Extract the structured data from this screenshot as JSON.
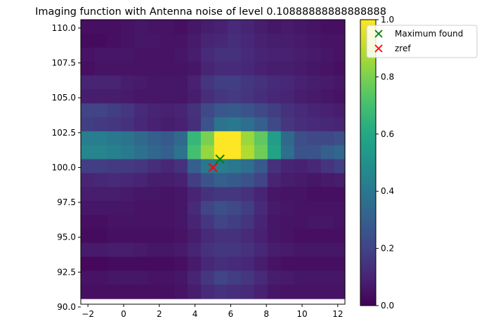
{
  "chart_data": {
    "type": "heatmap",
    "title": "Imaging function with  Antenna noise of level 0.10888888888888888",
    "xlabel": "",
    "ylabel": "",
    "xlim": [
      -2.4,
      12.4
    ],
    "ylim": [
      90.2,
      110.6
    ],
    "x_ticks": [
      -2,
      0,
      2,
      4,
      6,
      8,
      10,
      12
    ],
    "x_tick_labels": [
      "−2",
      "0",
      "2",
      "4",
      "6",
      "8",
      "10",
      "12"
    ],
    "y_ticks": [
      90.0,
      92.5,
      95.0,
      97.5,
      100.0,
      102.5,
      105.0,
      107.5,
      110.0
    ],
    "y_tick_labels": [
      "90.0",
      "92.5",
      "95.0",
      "97.5",
      "100.0",
      "102.5",
      "105.0",
      "107.5",
      "110.0"
    ],
    "grid": false,
    "colormap": "viridis",
    "colorbar": {
      "range": [
        0.0,
        1.0
      ],
      "ticks": [
        0.0,
        0.2,
        0.4,
        0.6,
        0.8,
        1.0
      ],
      "tick_labels": [
        "0.0",
        "0.2",
        "0.4",
        "0.6",
        "0.8",
        "1.0"
      ]
    },
    "cells": {
      "x_edges_start": -2.4,
      "x_step": 0.7474,
      "y_edges_start": 110.6,
      "y_step": -1.0,
      "values": [
        [
          0.04,
          0.04,
          0.04,
          0.05,
          0.06,
          0.05,
          0.05,
          0.04,
          0.06,
          0.08,
          0.09,
          0.12,
          0.1,
          0.08,
          0.06,
          0.07,
          0.06,
          0.05,
          0.04,
          0.04
        ],
        [
          0.03,
          0.03,
          0.04,
          0.05,
          0.06,
          0.06,
          0.05,
          0.05,
          0.07,
          0.1,
          0.11,
          0.13,
          0.11,
          0.09,
          0.08,
          0.08,
          0.07,
          0.06,
          0.05,
          0.05
        ],
        [
          0.05,
          0.06,
          0.06,
          0.06,
          0.05,
          0.05,
          0.05,
          0.06,
          0.08,
          0.12,
          0.14,
          0.14,
          0.12,
          0.1,
          0.09,
          0.09,
          0.08,
          0.07,
          0.06,
          0.05
        ],
        [
          0.04,
          0.05,
          0.05,
          0.05,
          0.05,
          0.05,
          0.05,
          0.05,
          0.06,
          0.1,
          0.12,
          0.12,
          0.11,
          0.09,
          0.08,
          0.08,
          0.07,
          0.06,
          0.05,
          0.04
        ],
        [
          0.1,
          0.1,
          0.1,
          0.08,
          0.07,
          0.06,
          0.06,
          0.06,
          0.09,
          0.15,
          0.18,
          0.18,
          0.16,
          0.14,
          0.12,
          0.11,
          0.09,
          0.08,
          0.07,
          0.06
        ],
        [
          0.08,
          0.08,
          0.08,
          0.07,
          0.06,
          0.06,
          0.06,
          0.06,
          0.08,
          0.13,
          0.16,
          0.17,
          0.15,
          0.13,
          0.11,
          0.1,
          0.08,
          0.07,
          0.06,
          0.05
        ],
        [
          0.2,
          0.2,
          0.18,
          0.16,
          0.12,
          0.1,
          0.09,
          0.1,
          0.14,
          0.22,
          0.27,
          0.28,
          0.26,
          0.22,
          0.18,
          0.14,
          0.12,
          0.1,
          0.09,
          0.08
        ],
        [
          0.18,
          0.17,
          0.16,
          0.14,
          0.11,
          0.09,
          0.08,
          0.09,
          0.13,
          0.25,
          0.38,
          0.4,
          0.36,
          0.3,
          0.22,
          0.16,
          0.13,
          0.12,
          0.11,
          0.1
        ],
        [
          0.42,
          0.42,
          0.4,
          0.38,
          0.34,
          0.3,
          0.28,
          0.34,
          0.66,
          0.8,
          1.0,
          1.0,
          0.85,
          0.75,
          0.55,
          0.34,
          0.24,
          0.22,
          0.22,
          0.24
        ],
        [
          0.45,
          0.45,
          0.43,
          0.41,
          0.37,
          0.33,
          0.3,
          0.38,
          0.7,
          0.84,
          1.0,
          1.0,
          0.88,
          0.78,
          0.58,
          0.36,
          0.25,
          0.26,
          0.3,
          0.33
        ],
        [
          0.18,
          0.18,
          0.17,
          0.17,
          0.16,
          0.13,
          0.11,
          0.14,
          0.3,
          0.4,
          0.42,
          0.4,
          0.36,
          0.28,
          0.14,
          0.1,
          0.09,
          0.11,
          0.15,
          0.18
        ],
        [
          0.1,
          0.11,
          0.12,
          0.11,
          0.1,
          0.08,
          0.08,
          0.09,
          0.18,
          0.26,
          0.3,
          0.28,
          0.25,
          0.2,
          0.1,
          0.08,
          0.07,
          0.06,
          0.07,
          0.08
        ],
        [
          0.08,
          0.08,
          0.08,
          0.07,
          0.06,
          0.06,
          0.05,
          0.06,
          0.1,
          0.14,
          0.16,
          0.16,
          0.14,
          0.1,
          0.06,
          0.05,
          0.05,
          0.04,
          0.04,
          0.04
        ],
        [
          0.06,
          0.06,
          0.06,
          0.06,
          0.05,
          0.05,
          0.05,
          0.06,
          0.12,
          0.2,
          0.24,
          0.22,
          0.18,
          0.12,
          0.07,
          0.06,
          0.05,
          0.05,
          0.05,
          0.05
        ],
        [
          0.04,
          0.04,
          0.05,
          0.05,
          0.05,
          0.05,
          0.05,
          0.06,
          0.1,
          0.16,
          0.2,
          0.18,
          0.15,
          0.1,
          0.06,
          0.05,
          0.05,
          0.06,
          0.06,
          0.05
        ],
        [
          0.03,
          0.03,
          0.04,
          0.04,
          0.04,
          0.04,
          0.04,
          0.05,
          0.08,
          0.12,
          0.14,
          0.14,
          0.12,
          0.09,
          0.06,
          0.05,
          0.04,
          0.04,
          0.04,
          0.04
        ],
        [
          0.07,
          0.07,
          0.08,
          0.08,
          0.07,
          0.06,
          0.06,
          0.07,
          0.1,
          0.14,
          0.16,
          0.16,
          0.14,
          0.11,
          0.08,
          0.07,
          0.06,
          0.06,
          0.06,
          0.06
        ],
        [
          0.02,
          0.02,
          0.03,
          0.03,
          0.03,
          0.03,
          0.03,
          0.04,
          0.07,
          0.11,
          0.13,
          0.12,
          0.11,
          0.08,
          0.05,
          0.04,
          0.04,
          0.04,
          0.04,
          0.04
        ],
        [
          0.05,
          0.05,
          0.06,
          0.06,
          0.06,
          0.05,
          0.05,
          0.06,
          0.1,
          0.16,
          0.2,
          0.18,
          0.16,
          0.12,
          0.08,
          0.07,
          0.06,
          0.06,
          0.06,
          0.06
        ],
        [
          0.04,
          0.04,
          0.04,
          0.04,
          0.04,
          0.04,
          0.04,
          0.05,
          0.08,
          0.12,
          0.14,
          0.13,
          0.12,
          0.09,
          0.06,
          0.05,
          0.05,
          0.05,
          0.05,
          0.05
        ]
      ]
    },
    "markers": [
      {
        "name": "Maximum found",
        "x": 5.4,
        "y": 100.6,
        "symbol": "x",
        "color": "#008000"
      },
      {
        "name": "zref",
        "x": 5.0,
        "y": 100.0,
        "symbol": "x",
        "color": "#ff0000"
      }
    ],
    "legend": {
      "placement": "upper right, outside axes",
      "entries": [
        {
          "label": "Maximum found",
          "color": "#008000"
        },
        {
          "label": "zref",
          "color": "#ff0000"
        }
      ]
    }
  }
}
